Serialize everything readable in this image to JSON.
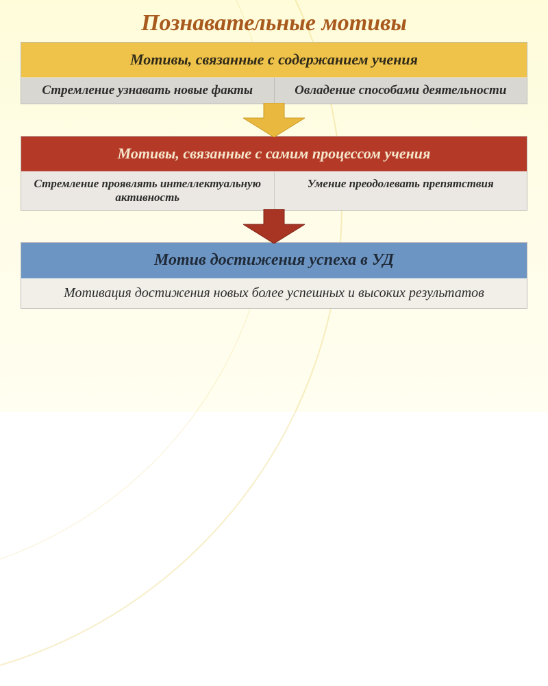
{
  "title": {
    "text": "Познавательные мотивы",
    "color": "#a85a1e",
    "fontsize": 34
  },
  "blocks": [
    {
      "header": {
        "text": "Мотивы, связанные с содержанием учения",
        "bg": "#efc34a",
        "color": "#2f2a1a",
        "fontsize": 22
      },
      "sub": {
        "type": "two",
        "left": "Стремление узнавать новые факты",
        "right": "Овладение способами деятельности",
        "bg": "#d9d7d2",
        "color": "#2b2b2b",
        "fontsize": 19
      }
    },
    {
      "header": {
        "text": "Мотивы, связанные с самим процессом учения",
        "bg": "#b43a27",
        "color": "#f4e7cc",
        "fontsize": 22
      },
      "sub": {
        "type": "two",
        "left": "Стремление проявлять интеллектуальную активность",
        "right": "Умение преодолевать препятствия",
        "bg": "#ebe8e3",
        "color": "#2b2b2b",
        "fontsize": 17
      }
    },
    {
      "header": {
        "text": "Мотив достижения успеха в УД",
        "bg": "#6d95c3",
        "color": "#1f2a38",
        "fontsize": 24
      },
      "sub": {
        "type": "single",
        "text": "Мотивация достижения новых более успешных и высоких результатов",
        "bg": "#f2efe9",
        "color": "#2b2b2b",
        "fontsize": 20
      }
    }
  ],
  "arrows": [
    {
      "fill": "#e9b83e",
      "stroke": "#c99a2a"
    },
    {
      "fill": "#a83423",
      "stroke": "#7e2619"
    }
  ],
  "layout": {
    "arrow_width": 90,
    "arrow_height": 50,
    "block_gap": 0,
    "background_top": "#fefcd9",
    "background_bottom": "#fffef0"
  }
}
